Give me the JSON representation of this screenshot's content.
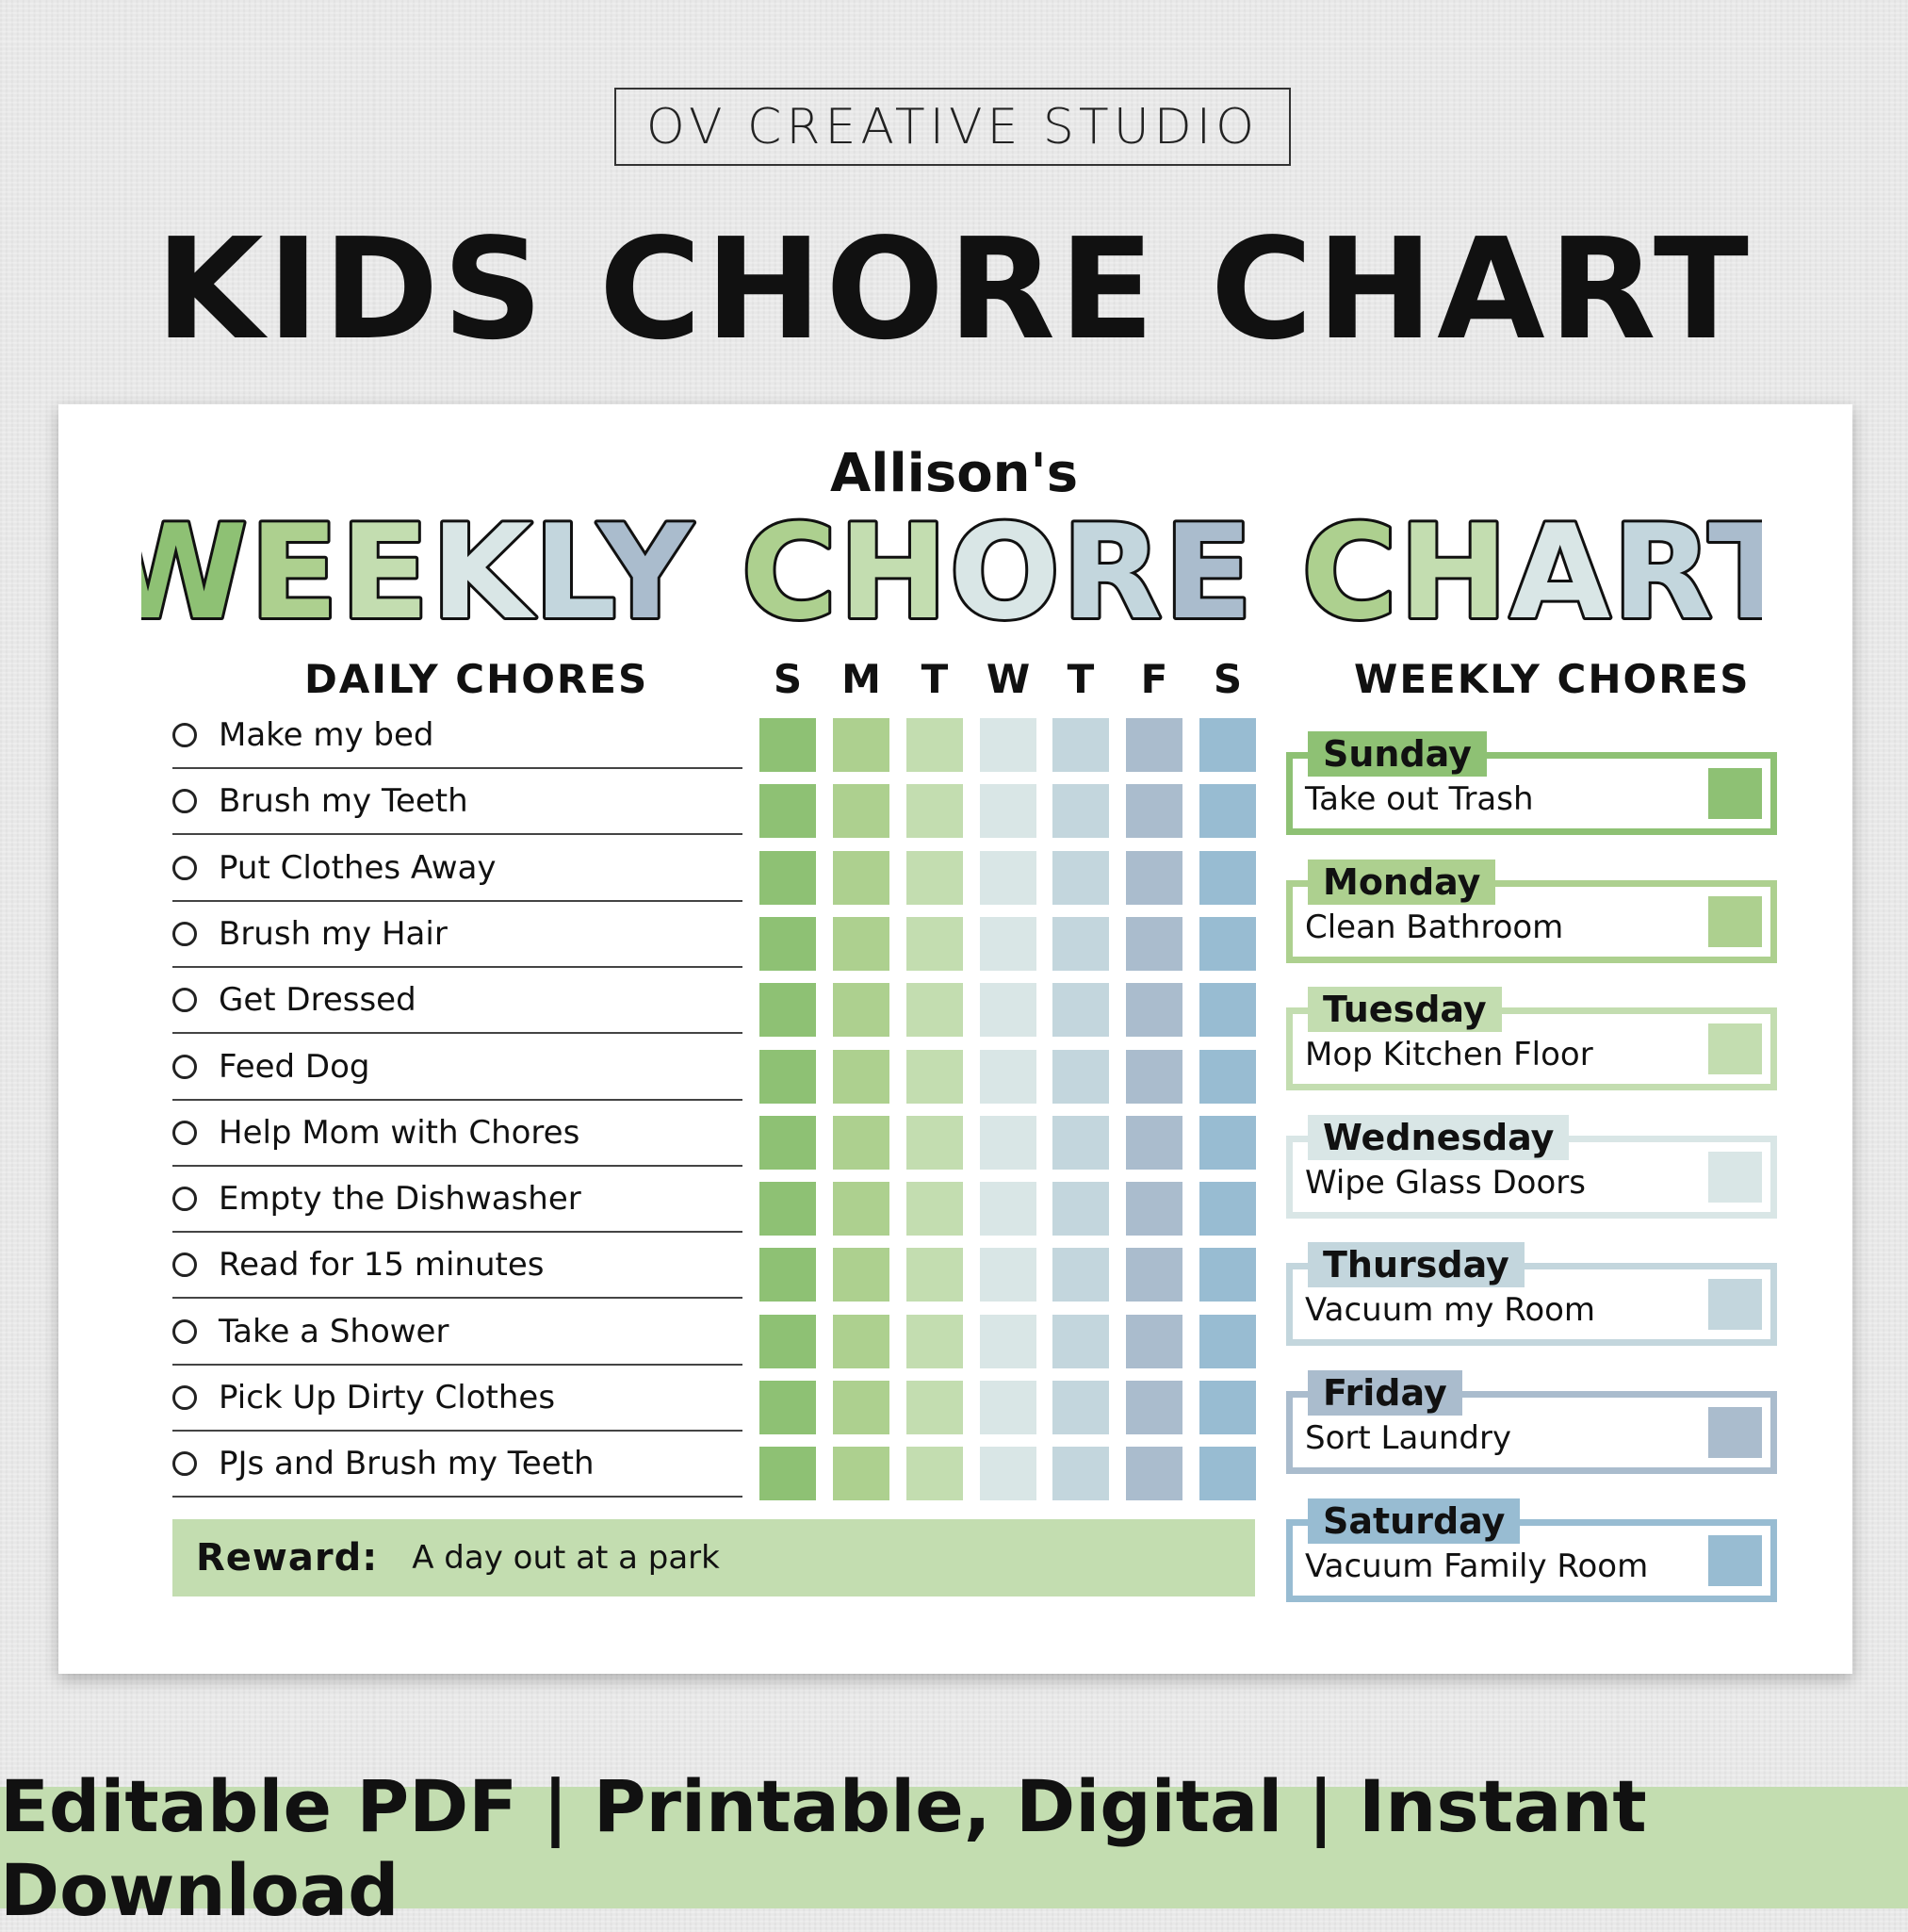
{
  "header": {
    "studio": "OV CREATIVE STUDIO",
    "title": "KIDS CHORE CHART"
  },
  "chart": {
    "owner": "Allison's",
    "title_words": [
      "WEEKLY",
      "CHORE",
      "CHART"
    ],
    "daily_header": "DAILY CHORES",
    "weekly_header": "WEEKLY CHORES",
    "day_letters": [
      "S",
      "M",
      "T",
      "W",
      "T",
      "F",
      "S"
    ],
    "day_colors": [
      "#8ec174",
      "#add08f",
      "#c3ddb0",
      "#d9e6e6",
      "#c3d6dd",
      "#aabccd",
      "#98bcd2"
    ],
    "daily_chores": [
      "Make my bed",
      "Brush my Teeth",
      "Put Clothes Away",
      "Brush my Hair",
      "Get Dressed",
      "Feed Dog",
      "Help Mom with Chores",
      "Empty the Dishwasher",
      "Read for 15 minutes",
      "Take a Shower",
      "Pick Up Dirty Clothes",
      "PJs and Brush my Teeth"
    ],
    "reward": {
      "label": "Reward:",
      "value": "A day out at a park"
    },
    "weekly_chores": [
      {
        "day": "Sunday",
        "task": "Take out Trash",
        "color": "#8ec174"
      },
      {
        "day": "Monday",
        "task": "Clean Bathroom",
        "color": "#add08f"
      },
      {
        "day": "Tuesday",
        "task": "Mop Kitchen Floor",
        "color": "#c3ddb0"
      },
      {
        "day": "Wednesday",
        "task": "Wipe Glass Doors",
        "color": "#d9e6e6"
      },
      {
        "day": "Thursday",
        "task": "Vacuum my Room",
        "color": "#c3d6dd"
      },
      {
        "day": "Friday",
        "task": "Sort Laundry",
        "color": "#aabccd"
      },
      {
        "day": "Saturday",
        "task": "Vacuum Family Room",
        "color": "#98bcd2"
      }
    ]
  },
  "footer": {
    "text": "Editable PDF | Printable, Digital | Instant Download"
  }
}
